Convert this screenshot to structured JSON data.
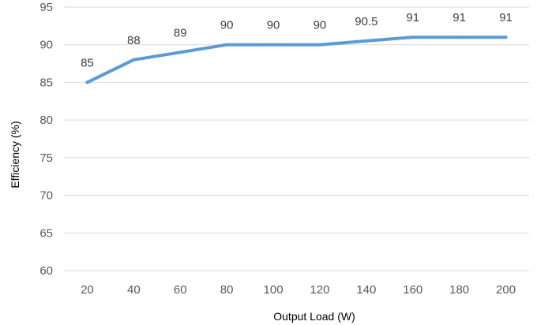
{
  "chart_data": {
    "type": "line",
    "title": "",
    "xlabel": "Output Load (W)",
    "ylabel": "Efficiency (%)",
    "x": [
      20,
      40,
      60,
      80,
      100,
      120,
      140,
      160,
      180,
      200
    ],
    "series": [
      {
        "values": [
          85,
          88,
          89,
          90,
          90,
          90,
          90.5,
          91,
          91,
          91
        ],
        "data_labels": [
          "85",
          "88",
          "89",
          "90",
          "90",
          "90",
          "90.5",
          "91",
          "91",
          "91"
        ],
        "color": "#5b9bd5"
      }
    ],
    "ylim": [
      60,
      95
    ],
    "yticks": [
      60,
      65,
      70,
      75,
      80,
      85,
      90,
      95
    ],
    "grid": "horizontal",
    "legend": "none"
  }
}
